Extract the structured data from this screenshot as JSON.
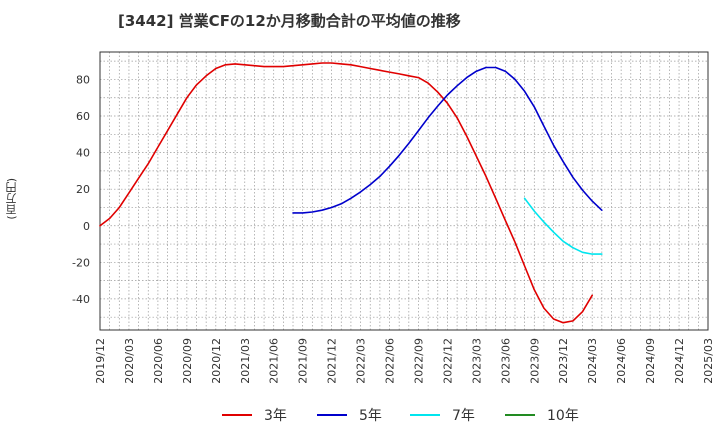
{
  "title": "[3442]  営業CFの12か月移動合計の平均値の推移",
  "chart_data": {
    "type": "line",
    "title": "[3442]  営業CFの12か月移動合計の平均値の推移",
    "ylabel": "(百万円)",
    "xlabel": "",
    "ylim": [
      -57,
      95
    ],
    "yticks": [
      80,
      60,
      40,
      20,
      0,
      -20,
      -40
    ],
    "grid": true,
    "legend_position": "bottom",
    "x_tick_labels": [
      "2019/12",
      "2020/03",
      "2020/06",
      "2020/09",
      "2020/12",
      "2021/03",
      "2021/06",
      "2021/09",
      "2021/12",
      "2022/03",
      "2022/06",
      "2022/09",
      "2022/12",
      "2023/03",
      "2023/06",
      "2023/09",
      "2023/12",
      "2024/03",
      "2024/06",
      "2024/09",
      "2024/12",
      "2025/03"
    ],
    "series": [
      {
        "name": "3年",
        "color": "#e00000",
        "points": [
          [
            "2019/12",
            0
          ],
          [
            "2020/01",
            4
          ],
          [
            "2020/02",
            10
          ],
          [
            "2020/03",
            18
          ],
          [
            "2020/04",
            26
          ],
          [
            "2020/05",
            34
          ],
          [
            "2020/06",
            43
          ],
          [
            "2020/07",
            52
          ],
          [
            "2020/08",
            61
          ],
          [
            "2020/09",
            70
          ],
          [
            "2020/10",
            77
          ],
          [
            "2020/11",
            82
          ],
          [
            "2020/12",
            86
          ],
          [
            "2021/01",
            88
          ],
          [
            "2021/02",
            88.5
          ],
          [
            "2021/03",
            88
          ],
          [
            "2021/04",
            87.5
          ],
          [
            "2021/05",
            87
          ],
          [
            "2021/06",
            87
          ],
          [
            "2021/07",
            87
          ],
          [
            "2021/08",
            87.5
          ],
          [
            "2021/09",
            88
          ],
          [
            "2021/10",
            88.5
          ],
          [
            "2021/11",
            89
          ],
          [
            "2021/12",
            89
          ],
          [
            "2022/01",
            88.5
          ],
          [
            "2022/02",
            88
          ],
          [
            "2022/03",
            87
          ],
          [
            "2022/04",
            86
          ],
          [
            "2022/05",
            85
          ],
          [
            "2022/06",
            84
          ],
          [
            "2022/07",
            83
          ],
          [
            "2022/08",
            82
          ],
          [
            "2022/09",
            81
          ],
          [
            "2022/10",
            78
          ],
          [
            "2022/11",
            73
          ],
          [
            "2022/12",
            67
          ],
          [
            "2023/01",
            59
          ],
          [
            "2023/02",
            49
          ],
          [
            "2023/03",
            38
          ],
          [
            "2023/04",
            27
          ],
          [
            "2023/05",
            15
          ],
          [
            "2023/06",
            3
          ],
          [
            "2023/07",
            -9
          ],
          [
            "2023/08",
            -22
          ],
          [
            "2023/09",
            -35
          ],
          [
            "2023/10",
            -45
          ],
          [
            "2023/11",
            -51
          ],
          [
            "2023/12",
            -53
          ],
          [
            "2024/01",
            -52
          ],
          [
            "2024/02",
            -47
          ],
          [
            "2024/03",
            -38
          ]
        ]
      },
      {
        "name": "5年",
        "color": "#0000cc",
        "points": [
          [
            "2021/08",
            7
          ],
          [
            "2021/09",
            7
          ],
          [
            "2021/10",
            7.5
          ],
          [
            "2021/11",
            8.5
          ],
          [
            "2021/12",
            10
          ],
          [
            "2022/01",
            12
          ],
          [
            "2022/02",
            15
          ],
          [
            "2022/03",
            18.5
          ],
          [
            "2022/04",
            22.5
          ],
          [
            "2022/05",
            27
          ],
          [
            "2022/06",
            32.5
          ],
          [
            "2022/07",
            38.5
          ],
          [
            "2022/08",
            45
          ],
          [
            "2022/09",
            52
          ],
          [
            "2022/10",
            59
          ],
          [
            "2022/11",
            65.5
          ],
          [
            "2022/12",
            71.5
          ],
          [
            "2023/01",
            76.5
          ],
          [
            "2023/02",
            81
          ],
          [
            "2023/03",
            84.5
          ],
          [
            "2023/04",
            86.5
          ],
          [
            "2023/05",
            86.5
          ],
          [
            "2023/06",
            84.5
          ],
          [
            "2023/07",
            80
          ],
          [
            "2023/08",
            73.5
          ],
          [
            "2023/09",
            65
          ],
          [
            "2023/10",
            54.5
          ],
          [
            "2023/11",
            44
          ],
          [
            "2023/12",
            35
          ],
          [
            "2024/01",
            26.5
          ],
          [
            "2024/02",
            19.5
          ],
          [
            "2024/03",
            13.5
          ],
          [
            "2024/04",
            8.5
          ]
        ]
      },
      {
        "name": "7年",
        "color": "#00e5ee",
        "points": [
          [
            "2023/08",
            15
          ],
          [
            "2023/09",
            8
          ],
          [
            "2023/10",
            2
          ],
          [
            "2023/11",
            -3.5
          ],
          [
            "2023/12",
            -8.5
          ],
          [
            "2024/01",
            -12
          ],
          [
            "2024/02",
            -14.5
          ],
          [
            "2024/03",
            -15.5
          ],
          [
            "2024/04",
            -15.5
          ]
        ]
      },
      {
        "name": "10年",
        "color": "#228b22",
        "points": []
      }
    ]
  }
}
